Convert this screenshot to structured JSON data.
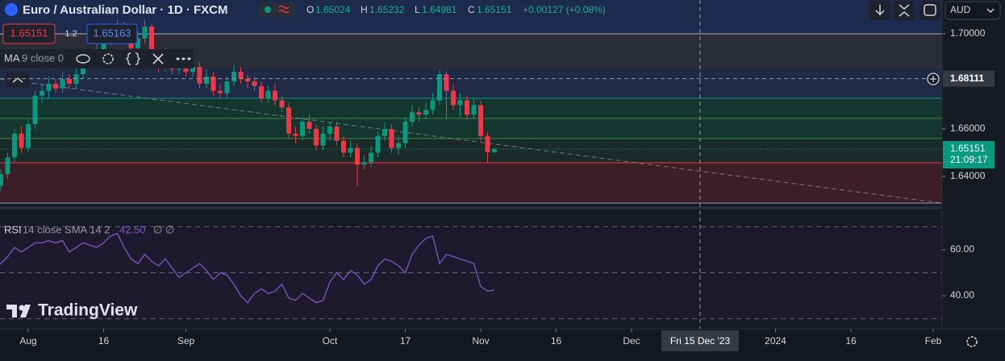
{
  "ui": {
    "title": "Euro / Australian Dollar · 1D · FXCM",
    "o_label": "O",
    "h_label": "H",
    "l_label": "L",
    "c_label": "C",
    "change": "+0.00127 (+0.08%)",
    "spread": "1.2",
    "ask": "1.65163",
    "ma_name": "MA",
    "ma_params": "9 close 0",
    "countdown": "21:09:17",
    "currency": "AUD",
    "logo": "TradingView",
    "rsi_value": "42.50",
    "rsi_extra": "∅ ∅"
  },
  "chart_data": [
    {
      "type": "candlestick",
      "up_color": "#089981",
      "down_color": "#f23645",
      "x": [
        "2023-07-25",
        "2023-07-26",
        "2023-07-27",
        "2023-07-28",
        "2023-07-31",
        "2023-08-01",
        "2023-08-02",
        "2023-08-03",
        "2023-08-04",
        "2023-08-07",
        "2023-08-08",
        "2023-08-09",
        "2023-08-10",
        "2023-08-11",
        "2023-08-14",
        "2023-08-15",
        "2023-08-16",
        "2023-08-17",
        "2023-08-18",
        "2023-08-21",
        "2023-08-22",
        "2023-08-23",
        "2023-08-24",
        "2023-08-25",
        "2023-08-28",
        "2023-08-29",
        "2023-08-30",
        "2023-08-31",
        "2023-09-01",
        "2023-09-04",
        "2023-09-05",
        "2023-09-06",
        "2023-09-07",
        "2023-09-08",
        "2023-09-11",
        "2023-09-12",
        "2023-09-13",
        "2023-09-14",
        "2023-09-15",
        "2023-09-18",
        "2023-09-19",
        "2023-09-20",
        "2023-09-21",
        "2023-09-22",
        "2023-09-25",
        "2023-09-26",
        "2023-09-27",
        "2023-09-28",
        "2023-09-29",
        "2023-10-02",
        "2023-10-03",
        "2023-10-04",
        "2023-10-05",
        "2023-10-06",
        "2023-10-09",
        "2023-10-10",
        "2023-10-11",
        "2023-10-12",
        "2023-10-13",
        "2023-10-16",
        "2023-10-17",
        "2023-10-18",
        "2023-10-19",
        "2023-10-20",
        "2023-10-23",
        "2023-10-24",
        "2023-10-25",
        "2023-10-26",
        "2023-10-27",
        "2023-10-30",
        "2023-10-31",
        "2023-11-01",
        "2023-11-02",
        "2023-11-03"
      ],
      "open": [
        1.632,
        1.636,
        1.641,
        1.648,
        1.658,
        1.652,
        1.662,
        1.674,
        1.676,
        1.679,
        1.677,
        1.681,
        1.679,
        1.683,
        1.688,
        1.69,
        1.693,
        1.697,
        1.699,
        1.703,
        1.7,
        1.694,
        1.698,
        1.703,
        1.688,
        1.686,
        1.691,
        1.685,
        1.689,
        1.684,
        1.686,
        1.679,
        1.682,
        1.676,
        1.675,
        1.68,
        1.684,
        1.681,
        1.68,
        1.678,
        1.673,
        1.676,
        1.672,
        1.669,
        1.658,
        1.657,
        1.663,
        1.66,
        1.653,
        1.658,
        1.661,
        1.655,
        1.65,
        1.652,
        1.645,
        1.646,
        1.65,
        1.657,
        1.66,
        1.652,
        1.654,
        1.663,
        1.667,
        1.666,
        1.668,
        1.672,
        1.683,
        1.676,
        1.67,
        1.672,
        1.666,
        1.67,
        1.657,
        1.65024
      ],
      "high": [
        1.638,
        1.643,
        1.65,
        1.66,
        1.661,
        1.664,
        1.676,
        1.679,
        1.682,
        1.681,
        1.684,
        1.683,
        1.686,
        1.69,
        1.693,
        1.696,
        1.699,
        1.702,
        1.706,
        1.705,
        1.702,
        1.701,
        1.706,
        1.704,
        1.691,
        1.694,
        1.693,
        1.692,
        1.691,
        1.689,
        1.688,
        1.685,
        1.684,
        1.679,
        1.682,
        1.687,
        1.686,
        1.683,
        1.682,
        1.68,
        1.678,
        1.679,
        1.674,
        1.671,
        1.661,
        1.665,
        1.666,
        1.662,
        1.661,
        1.663,
        1.663,
        1.657,
        1.655,
        1.654,
        1.649,
        1.653,
        1.659,
        1.663,
        1.662,
        1.657,
        1.665,
        1.67,
        1.669,
        1.671,
        1.675,
        1.685,
        1.684,
        1.679,
        1.675,
        1.674,
        1.673,
        1.672,
        1.6585,
        1.65232
      ],
      "low": [
        1.63,
        1.634,
        1.639,
        1.646,
        1.65,
        1.65,
        1.66,
        1.671,
        1.673,
        1.675,
        1.675,
        1.677,
        1.677,
        1.681,
        1.686,
        1.688,
        1.691,
        1.695,
        1.697,
        1.698,
        1.692,
        1.692,
        1.696,
        1.686,
        1.684,
        1.684,
        1.683,
        1.683,
        1.682,
        1.682,
        1.677,
        1.677,
        1.674,
        1.673,
        1.673,
        1.678,
        1.679,
        1.677,
        1.676,
        1.671,
        1.671,
        1.67,
        1.667,
        1.656,
        1.654,
        1.655,
        1.658,
        1.651,
        1.651,
        1.655,
        1.653,
        1.648,
        1.648,
        1.636,
        1.643,
        1.644,
        1.648,
        1.655,
        1.65,
        1.649,
        1.652,
        1.661,
        1.663,
        1.664,
        1.666,
        1.67,
        1.664,
        1.668,
        1.665,
        1.664,
        1.664,
        1.655,
        1.646,
        1.64981
      ],
      "close": [
        1.636,
        1.641,
        1.648,
        1.658,
        1.652,
        1.662,
        1.674,
        1.676,
        1.679,
        1.677,
        1.681,
        1.679,
        1.683,
        1.688,
        1.69,
        1.693,
        1.697,
        1.699,
        1.703,
        1.7,
        1.694,
        1.698,
        1.703,
        1.688,
        1.686,
        1.691,
        1.685,
        1.689,
        1.684,
        1.686,
        1.679,
        1.682,
        1.676,
        1.675,
        1.68,
        1.684,
        1.681,
        1.68,
        1.678,
        1.673,
        1.676,
        1.672,
        1.669,
        1.658,
        1.657,
        1.663,
        1.66,
        1.653,
        1.658,
        1.661,
        1.655,
        1.65,
        1.652,
        1.645,
        1.646,
        1.65,
        1.657,
        1.66,
        1.652,
        1.654,
        1.663,
        1.667,
        1.666,
        1.668,
        1.672,
        1.683,
        1.676,
        1.67,
        1.672,
        1.666,
        1.67,
        1.657,
        1.6502,
        1.65151
      ],
      "xlim": [
        "2023-07-25",
        "2024-02-06"
      ],
      "xticks": [
        {
          "value": "2023-08-01",
          "label": "Aug"
        },
        {
          "value": "2023-08-16",
          "label": "16"
        },
        {
          "value": "2023-09-01",
          "label": "Sep"
        },
        {
          "value": "2023-10-02",
          "label": "Oct"
        },
        {
          "value": "2023-10-17",
          "label": "17"
        },
        {
          "value": "2023-11-01",
          "label": "Nov"
        },
        {
          "value": "2023-11-16",
          "label": "16"
        },
        {
          "value": "2023-12-01",
          "label": "Dec"
        },
        {
          "value": "2024-01-01",
          "label": "2024"
        },
        {
          "value": "2024-01-16",
          "label": "16"
        },
        {
          "value": "2024-02-01",
          "label": "Feb"
        }
      ],
      "ylim": [
        1.6278,
        1.7142
      ],
      "yticks": [
        {
          "value": 1.7,
          "label": "1.70000"
        },
        {
          "value": 1.66,
          "label": "1.66000"
        },
        {
          "value": 1.64,
          "label": "1.64000"
        }
      ],
      "crosshair": {
        "x": "2023-12-15",
        "x_label": "Fri 15 Dec '23",
        "y": 1.68111
      }
    },
    {
      "type": "line",
      "title": "RSI",
      "subtitle": "14 close SMA 14 2",
      "color": "#7e57c2",
      "values": [
        52,
        54,
        57,
        61,
        59,
        61,
        63,
        63,
        64,
        63,
        64,
        59,
        61,
        63,
        62,
        61,
        63,
        66,
        67,
        61,
        56,
        54,
        58,
        55,
        53,
        56,
        52,
        48,
        50,
        52,
        54,
        51,
        47,
        50,
        49,
        45,
        40,
        37,
        41,
        43,
        41,
        42,
        45,
        39,
        38,
        41,
        39,
        37,
        38,
        46,
        50,
        47,
        51,
        49,
        45,
        47,
        53,
        56,
        55,
        53,
        50,
        58,
        62,
        65,
        66,
        54,
        58,
        57,
        56,
        55,
        54,
        44,
        42,
        42.5
      ],
      "ylim": [
        26.7,
        76.8
      ],
      "yticks": [
        {
          "value": 60,
          "label": "60.00"
        },
        {
          "value": 40,
          "label": "40.00"
        }
      ],
      "levels": [
        70,
        50,
        30
      ]
    }
  ]
}
